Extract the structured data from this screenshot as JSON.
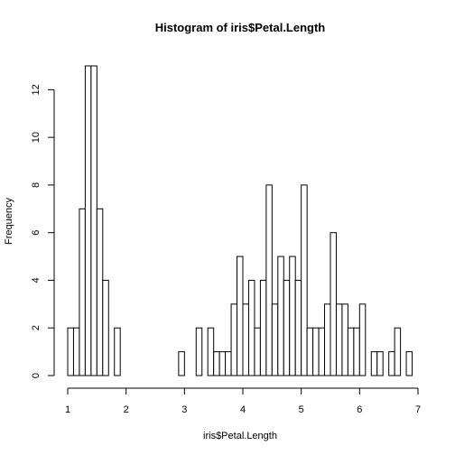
{
  "chart_data": {
    "type": "bar",
    "title": "Histogram of iris$Petal.Length",
    "xlabel": "iris$Petal.Length",
    "ylabel": "Frequency",
    "xlim": [
      1,
      7
    ],
    "ylim": [
      0,
      13
    ],
    "x_ticks": [
      1,
      2,
      3,
      4,
      5,
      6,
      7
    ],
    "y_ticks": [
      0,
      2,
      4,
      6,
      8,
      10,
      12
    ],
    "bin_width": 0.1,
    "bin_start": 1.0,
    "values": [
      2,
      2,
      7,
      13,
      13,
      7,
      4,
      0,
      2,
      0,
      0,
      0,
      0,
      0,
      0,
      0,
      0,
      0,
      0,
      1,
      0,
      0,
      2,
      0,
      2,
      1,
      1,
      1,
      3,
      5,
      3,
      4,
      2,
      4,
      8,
      3,
      5,
      4,
      5,
      4,
      8,
      2,
      2,
      2,
      3,
      6,
      3,
      3,
      2,
      2,
      3,
      0,
      1,
      1,
      0,
      1,
      2,
      0,
      1
    ],
    "grid": false
  }
}
